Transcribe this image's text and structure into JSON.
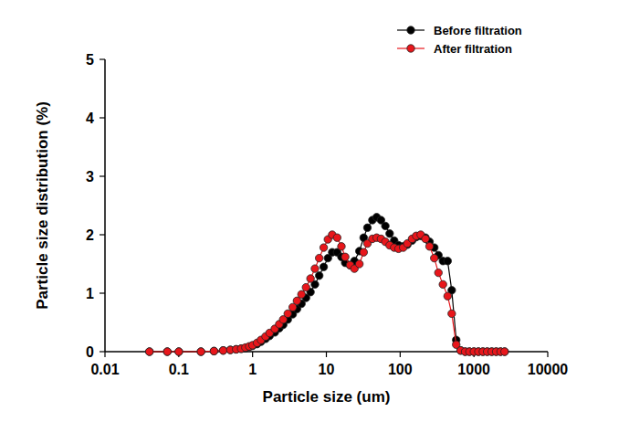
{
  "chart_data": {
    "type": "line",
    "x_label": "Particle size (um)",
    "y_label": "Particle size distribution (%)",
    "log": "x",
    "legend": "upper right",
    "xlim": [
      0.01,
      10000
    ],
    "xticks": [
      0.01,
      0.1,
      1,
      10,
      100,
      1000,
      10000
    ],
    "ylim": [
      0,
      5
    ],
    "yticks": [
      0,
      1,
      2,
      3,
      4,
      5
    ],
    "x": [
      0.04,
      0.07,
      0.1,
      0.2,
      0.3,
      0.4,
      0.5,
      0.6,
      0.7,
      0.8,
      0.9,
      1.0,
      1.15,
      1.3,
      1.5,
      1.7,
      2.0,
      2.3,
      2.6,
      3.0,
      3.5,
      4.0,
      4.6,
      5.3,
      6.1,
      7.0,
      8.0,
      9.2,
      10.5,
      12,
      14,
      16,
      18,
      21,
      24,
      28,
      32,
      36,
      42,
      48,
      55,
      63,
      72,
      83,
      95,
      110,
      125,
      145,
      165,
      190,
      220,
      250,
      290,
      330,
      380,
      440,
      500,
      575,
      660,
      760,
      870,
      1000,
      1150,
      1320,
      1510,
      1740,
      2000,
      2300,
      2600
    ],
    "series": [
      {
        "name": "Before filtration",
        "color": "#000000",
        "marker": "circle",
        "line_style": "solid",
        "values": [
          0,
          0,
          0,
          0,
          0.01,
          0.02,
          0.03,
          0.04,
          0.05,
          0.06,
          0.08,
          0.1,
          0.13,
          0.17,
          0.22,
          0.27,
          0.33,
          0.4,
          0.46,
          0.55,
          0.64,
          0.73,
          0.82,
          0.92,
          1.02,
          1.15,
          1.3,
          1.45,
          1.6,
          1.7,
          1.7,
          1.62,
          1.52,
          1.48,
          1.55,
          1.72,
          1.95,
          2.12,
          2.25,
          2.3,
          2.25,
          2.15,
          2.02,
          1.9,
          1.82,
          1.8,
          1.83,
          1.9,
          1.96,
          1.98,
          1.95,
          1.88,
          1.78,
          1.65,
          1.55,
          1.55,
          1.05,
          0.2,
          0.02,
          0,
          0,
          0,
          0,
          0,
          0,
          0,
          0,
          0,
          0
        ]
      },
      {
        "name": "After filtration",
        "color": "#e8161b",
        "marker": "circle",
        "line_style": "solid",
        "values": [
          0,
          0,
          0,
          0,
          0.01,
          0.02,
          0.03,
          0.04,
          0.05,
          0.07,
          0.09,
          0.11,
          0.15,
          0.2,
          0.26,
          0.32,
          0.39,
          0.47,
          0.55,
          0.65,
          0.76,
          0.87,
          0.98,
          1.1,
          1.25,
          1.42,
          1.6,
          1.78,
          1.92,
          2.0,
          1.95,
          1.8,
          1.62,
          1.48,
          1.42,
          1.5,
          1.7,
          1.85,
          1.93,
          1.95,
          1.93,
          1.88,
          1.82,
          1.78,
          1.76,
          1.78,
          1.85,
          1.93,
          1.98,
          2.0,
          1.93,
          1.8,
          1.6,
          1.35,
          1.15,
          0.95,
          0.65,
          0.12,
          0.02,
          0,
          0,
          0,
          0,
          0,
          0,
          0,
          0,
          0,
          0
        ]
      }
    ]
  }
}
